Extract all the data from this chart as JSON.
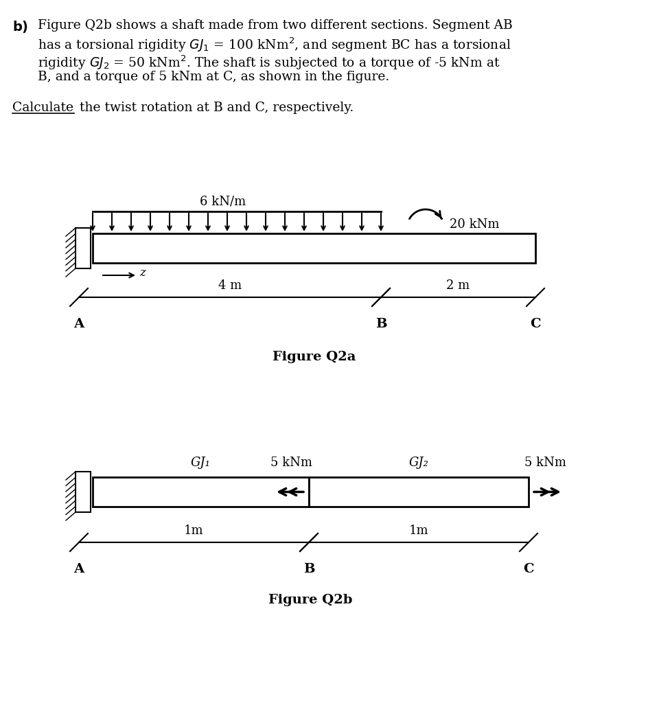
{
  "bg_color": "#ffffff",
  "fig_width": 9.45,
  "fig_height": 10.24,
  "load_label_q2a": "6 kN/m",
  "moment_label_q2a": "20 kNm",
  "dim_AB": "4 m",
  "dim_BC": "2 m",
  "label_A_q2a": "A",
  "label_B_q2a": "B",
  "label_C_q2a": "C",
  "z_label": "z",
  "gj1_label": "GJ₁",
  "gj2_label": "GJ₂",
  "torque_B_label": "5 kNm",
  "torque_C_label": "5 kNm",
  "dim_AB_q2b": "1m",
  "dim_BC_q2b": "1m",
  "label_A_q2b": "A",
  "label_B_q2b": "B",
  "label_C_q2b": "C",
  "fig_q2a_label": "Figure Q2a",
  "fig_q2b_label": "Figure Q2b"
}
